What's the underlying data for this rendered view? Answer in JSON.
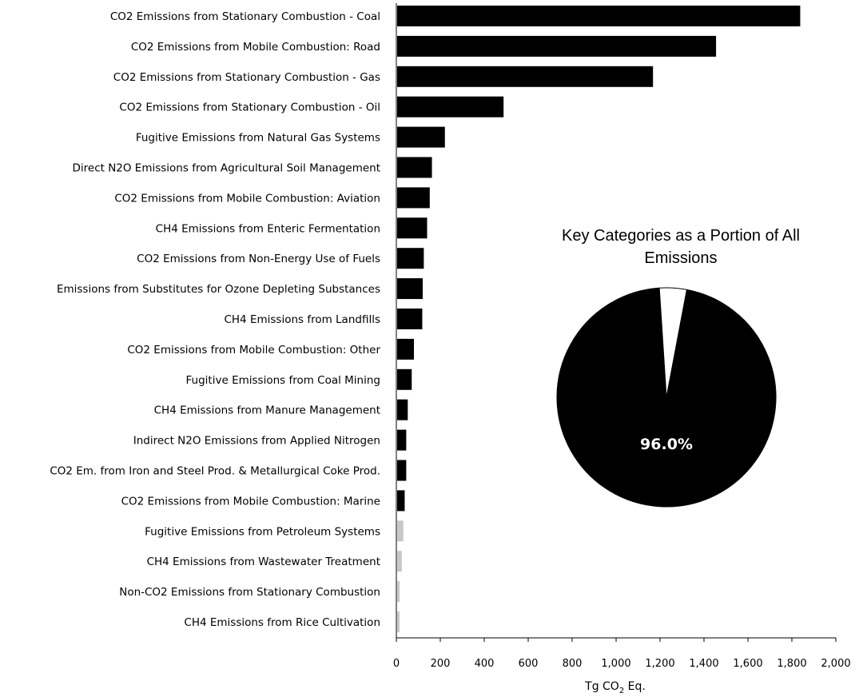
{
  "chart_data": [
    {
      "type": "bar",
      "orientation": "horizontal",
      "xlabel": "Tg CO2 Eq.",
      "xlabel_main": "Tg CO",
      "xlabel_sub": "2",
      "xlabel_suffix": " Eq.",
      "xlim": [
        0,
        2000
      ],
      "xticks": [
        0,
        200,
        400,
        600,
        800,
        1000,
        1200,
        1400,
        1600,
        1800,
        2000
      ],
      "xtick_labels": [
        "0",
        "200",
        "400",
        "600",
        "800",
        "1,000",
        "1,200",
        "1,400",
        "1,600",
        "1,800",
        "2,000"
      ],
      "grid": false,
      "colors": {
        "key": "#000000",
        "non_key": "#c8c8c8"
      },
      "categories": [
        "CO2 Emissions from Stationary Combustion - Coal",
        "CO2 Emissions from Mobile Combustion: Road",
        "CO2 Emissions from Stationary Combustion - Gas",
        "CO2 Emissions from Stationary Combustion - Oil",
        "Fugitive Emissions from Natural Gas Systems",
        "Direct N2O Emissions from Agricultural Soil Management",
        "CO2 Emissions from Mobile Combustion: Aviation",
        "CH4 Emissions from Enteric Fermentation",
        "CO2 Emissions from Non-Energy Use of Fuels",
        "Emissions from Substitutes for Ozone Depleting Substances",
        "CH4 Emissions from Landfills",
        "CO2 Emissions from Mobile Combustion: Other",
        "Fugitive Emissions from Coal Mining",
        "CH4 Emissions from Manure Management",
        "Indirect N2O Emissions from Applied Nitrogen",
        "CO2 Em. from Iron and Steel Prod. & Metallurgical Coke Prod.",
        "CO2 Emissions from Mobile Combustion: Marine",
        "Fugitive Emissions from Petroleum Systems",
        "CH4 Emissions from Wastewater Treatment",
        "Non-CO2 Emissions from Stationary Combustion",
        "CH4 Emissions from Rice Cultivation"
      ],
      "values": [
        1838,
        1455,
        1168,
        488,
        221,
        162,
        152,
        140,
        125,
        120,
        118,
        80,
        70,
        52,
        45,
        45,
        38,
        32,
        25,
        15,
        12
      ],
      "key_category": [
        true,
        true,
        true,
        true,
        true,
        true,
        true,
        true,
        true,
        true,
        true,
        true,
        true,
        true,
        true,
        true,
        true,
        false,
        false,
        false,
        false
      ]
    },
    {
      "type": "pie",
      "title_line1": "Key Categories as a Portion of All",
      "title_line2": "Emissions",
      "slices": [
        {
          "value": 96.0,
          "label": "96.0%",
          "color": "#000000"
        },
        {
          "value": 4.0,
          "label": "",
          "color": "#ffffff"
        }
      ]
    }
  ]
}
